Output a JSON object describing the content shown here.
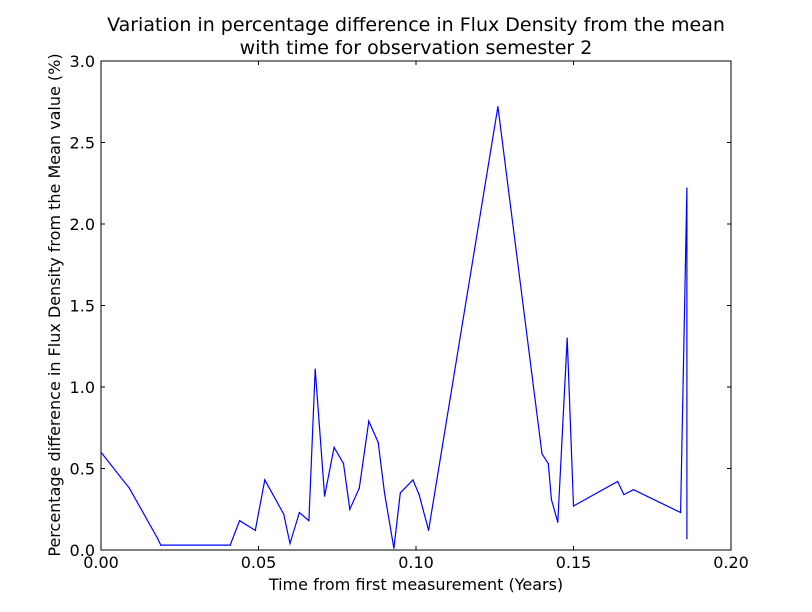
{
  "chart_data": {
    "type": "line",
    "title_line1": "Variation in percentage difference in Flux Density from the mean",
    "title_line2": "with time for observation semester 2",
    "xlabel": "Time from first measurement (Years)",
    "ylabel": "Percentage difference in Flux Density from the Mean value (%)",
    "xlim": [
      0.0,
      0.2
    ],
    "ylim": [
      0.0,
      3.0
    ],
    "x_ticks": [
      "0.00",
      "0.05",
      "0.10",
      "0.15",
      "0.20"
    ],
    "y_ticks": [
      "0.0",
      "0.5",
      "1.0",
      "1.5",
      "2.0",
      "2.5",
      "3.0"
    ],
    "grid": false,
    "line_color": "#0000ff",
    "series": [
      {
        "x": [
          0.0,
          0.009,
          0.018,
          0.019,
          0.041,
          0.044,
          0.049,
          0.052,
          0.058,
          0.06,
          0.063,
          0.066,
          0.068,
          0.071,
          0.074,
          0.077,
          0.079,
          0.082,
          0.085,
          0.088,
          0.09,
          0.093,
          0.095,
          0.099,
          0.101,
          0.104,
          0.126,
          0.14,
          0.142,
          0.143,
          0.145,
          0.148,
          0.15,
          0.164,
          0.166,
          0.169,
          0.184,
          0.186,
          0.186
        ],
        "y": [
          0.6,
          0.38,
          0.07,
          0.03,
          0.03,
          0.18,
          0.12,
          0.43,
          0.22,
          0.04,
          0.23,
          0.18,
          1.11,
          0.33,
          0.63,
          0.53,
          0.25,
          0.38,
          0.79,
          0.66,
          0.35,
          0.01,
          0.35,
          0.43,
          0.34,
          0.12,
          2.72,
          0.59,
          0.53,
          0.31,
          0.17,
          1.3,
          0.27,
          0.42,
          0.34,
          0.37,
          0.23,
          2.22,
          0.07
        ]
      }
    ]
  }
}
